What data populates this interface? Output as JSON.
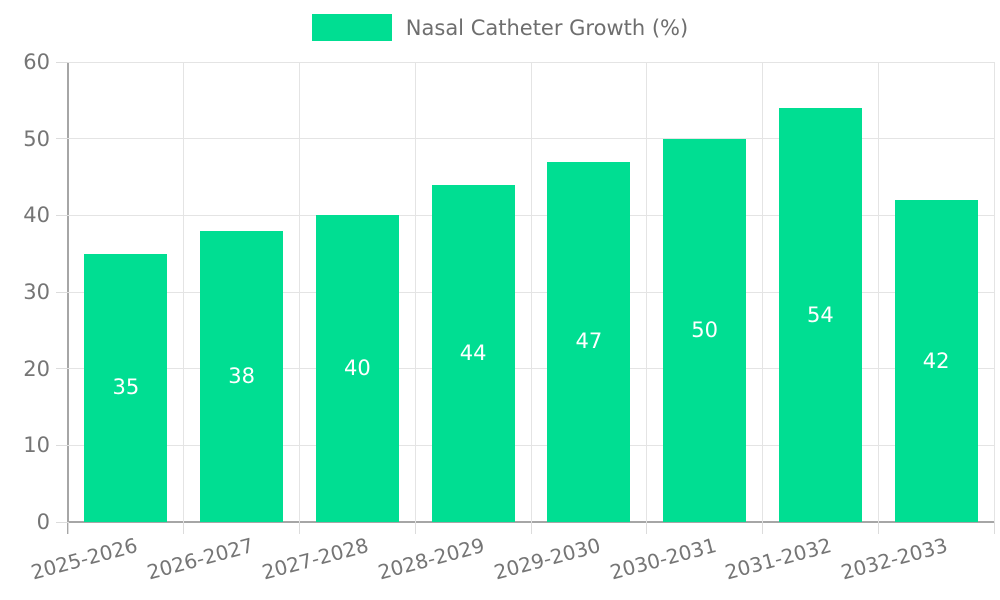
{
  "legend": {
    "label": "Nasal Catheter Growth (%)"
  },
  "chart_data": {
    "type": "bar",
    "title": "Nasal Catheter Growth (%)",
    "categories": [
      "2025-2026",
      "2026-2027",
      "2027-2028",
      "2028-2029",
      "2029-2030",
      "2030-2031",
      "2031-2032",
      "2032-2033"
    ],
    "values": [
      35,
      38,
      40,
      44,
      47,
      50,
      54,
      42
    ],
    "xlabel": "",
    "ylabel": "",
    "ylim": [
      0,
      60
    ],
    "yticks": [
      0,
      10,
      20,
      30,
      40,
      50,
      60
    ],
    "grid": true,
    "legend_position": "top-center",
    "bar_color": "#00de92",
    "value_label_color": "#ffffff",
    "axis_color": "#a6a6a6",
    "gridline_color": "#e4e4e4",
    "tick_label_color": "#757575"
  }
}
